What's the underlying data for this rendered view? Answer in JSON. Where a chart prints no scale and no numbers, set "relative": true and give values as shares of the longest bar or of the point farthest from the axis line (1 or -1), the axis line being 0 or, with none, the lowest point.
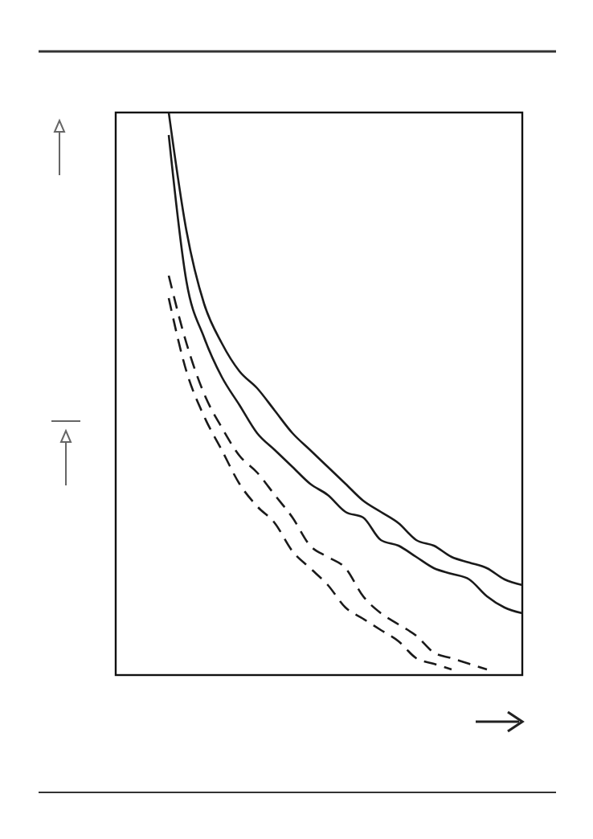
{
  "chart_data": {
    "type": "line",
    "relative": true,
    "legend": false,
    "categories": [
      null,
      null,
      null,
      null,
      null,
      null,
      null,
      null,
      null,
      null,
      null,
      null,
      null,
      null,
      null,
      null,
      null,
      null,
      null,
      null,
      null,
      null,
      null,
      null
    ],
    "series": [
      {
        "color": "#1a1a1a",
        "line_style": "solid",
        "values": [
          null,
          null,
          null,
          1.0,
          0.79,
          0.66,
          0.59,
          0.54,
          0.51,
          0.47,
          0.43,
          0.4,
          0.37,
          0.34,
          0.31,
          0.29,
          0.27,
          0.24,
          0.23,
          0.21,
          0.2,
          0.19,
          0.17,
          0.16
        ]
      },
      {
        "color": "#1a1a1a",
        "line_style": "solid",
        "values": [
          null,
          null,
          null,
          0.96,
          0.7,
          0.6,
          0.53,
          0.48,
          0.43,
          0.4,
          0.37,
          0.34,
          0.32,
          0.29,
          0.28,
          0.24,
          0.23,
          0.21,
          0.19,
          0.18,
          0.17,
          0.14,
          0.12,
          0.11
        ]
      },
      {
        "color": "#1a1a1a",
        "line_style": "dashed",
        "values": [
          null,
          null,
          null,
          0.71,
          0.59,
          0.5,
          0.44,
          0.39,
          0.36,
          0.32,
          0.28,
          0.23,
          0.21,
          0.19,
          0.14,
          0.11,
          0.09,
          0.07,
          0.04,
          0.03,
          0.02,
          0.01,
          null,
          null
        ]
      },
      {
        "color": "#1a1a1a",
        "line_style": "dashed",
        "values": [
          null,
          null,
          null,
          0.67,
          0.54,
          0.46,
          0.4,
          0.34,
          0.3,
          0.27,
          0.22,
          0.19,
          0.16,
          0.12,
          0.1,
          0.08,
          0.06,
          0.03,
          0.02,
          0.01,
          null,
          null,
          null,
          null
        ]
      }
    ]
  }
}
